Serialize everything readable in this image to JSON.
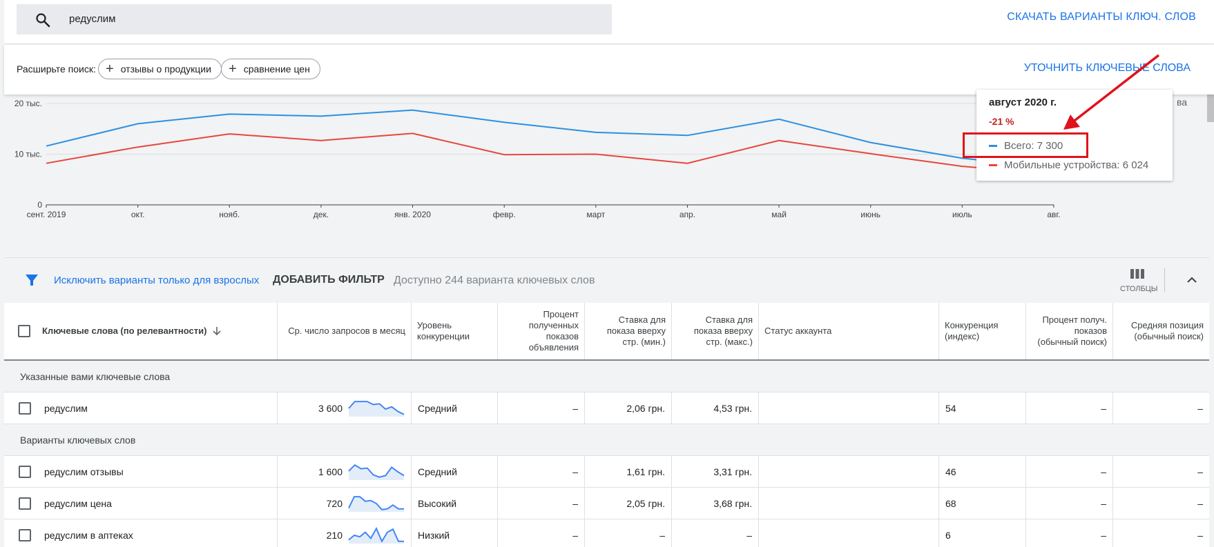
{
  "search": {
    "query": "редуслим",
    "icon": "search-icon"
  },
  "header": {
    "download_label": "СКАЧАТЬ ВАРИАНТЫ КЛЮЧ. СЛОВ"
  },
  "expand": {
    "label": "Расширьте поиск:",
    "chips": [
      "отзывы о продукции",
      "сравнение цен"
    ],
    "refine_label": "УТОЧНИТЬ КЛЮЧЕВЫЕ СЛОВА"
  },
  "chart_data": {
    "type": "line",
    "categories": [
      "сент. 2019",
      "окт.",
      "нояб.",
      "дек.",
      "янв. 2020",
      "февр.",
      "март",
      "апр.",
      "май",
      "июнь",
      "июль",
      "авг."
    ],
    "y_ticks": [
      "20 тыс.",
      "10 тыс.",
      "0"
    ],
    "ylim": [
      0,
      20000
    ],
    "series": [
      {
        "name": "Всего",
        "color": "#2d8fdf",
        "values": [
          11600,
          16000,
          17900,
          17500,
          18700,
          16300,
          14300,
          13700,
          16900,
          12300,
          9200,
          7300
        ]
      },
      {
        "name": "Мобильные устройства",
        "color": "#e8453c",
        "values": [
          8200,
          11400,
          14000,
          12700,
          14100,
          9900,
          10000,
          8200,
          12700,
          10100,
          7600,
          6024
        ]
      }
    ]
  },
  "tooltip": {
    "title": "август 2020 г.",
    "change": "-21 %",
    "total_label": "Всего: 7 300",
    "mobile_label": "Мобильные устройства: 6 024",
    "clipped": "ва"
  },
  "filter": {
    "exclude_label": "Исключить варианты только для взрослых",
    "add_filter_label": "ДОБАВИТЬ ФИЛЬТР",
    "available_label": "Доступно 244 варианта ключевых слов",
    "columns_label": "СТОЛБЦЫ"
  },
  "table": {
    "headers": {
      "keyword": "Ключевые слова (по релевантности)",
      "avg_searches": "Ср. число запросов в месяц",
      "competition": "Уровень конкуренции",
      "impr_share": "Процент полученных показов объявления",
      "bid_low": "Ставка для показа вверху стр. (мин.)",
      "bid_high": "Ставка для показа вверху стр. (макс.)",
      "account_status": "Статус аккаунта",
      "competition_index": "Конкуренция (индекс)",
      "organic_impr": "Процент получ. показов (обычный поиск)",
      "organic_pos": "Средняя позиция (обычный поиск)"
    },
    "group_provided": "Указанные вами ключевые слова",
    "group_ideas": "Варианты ключевых слов",
    "provided_rows": [
      {
        "keyword": "редуслим",
        "searches": "3 600",
        "trend": [
          0.5,
          0.95,
          0.95,
          0.95,
          0.75,
          0.8,
          0.45,
          0.6,
          0.3,
          0.1
        ],
        "competition": "Средний",
        "impr": "–",
        "bid_low": "2,06 грн.",
        "bid_high": "4,53 грн.",
        "status": "",
        "index": "54",
        "org_impr": "–",
        "org_pos": "–"
      }
    ],
    "idea_rows": [
      {
        "keyword": "редуслим отзывы",
        "searches": "1 600",
        "trend": [
          0.55,
          0.95,
          0.7,
          0.75,
          0.3,
          0.15,
          0.25,
          0.8,
          0.5,
          0.25
        ],
        "competition": "Средний",
        "impr": "–",
        "bid_low": "1,61 грн.",
        "bid_high": "3,31 грн.",
        "status": "",
        "index": "46",
        "org_impr": "–",
        "org_pos": "–"
      },
      {
        "keyword": "редуслим цена",
        "searches": "720",
        "trend": [
          0.2,
          0.95,
          0.95,
          0.65,
          0.7,
          0.5,
          0.1,
          0.15,
          0.4,
          0.15,
          0.15
        ],
        "competition": "Высокий",
        "impr": "–",
        "bid_low": "2,05 грн.",
        "bid_high": "3,68 грн.",
        "status": "",
        "index": "68",
        "org_impr": "–",
        "org_pos": "–"
      },
      {
        "keyword": "редуслим в аптеках",
        "searches": "210",
        "trend": [
          0.2,
          0.5,
          0.4,
          0.7,
          0.3,
          0.95,
          0.1,
          0.7,
          0.9,
          0.1,
          0.1
        ],
        "competition": "Низкий",
        "impr": "–",
        "bid_low": "–",
        "bid_high": "–",
        "status": "",
        "index": "6",
        "org_impr": "–",
        "org_pos": "–"
      }
    ]
  }
}
